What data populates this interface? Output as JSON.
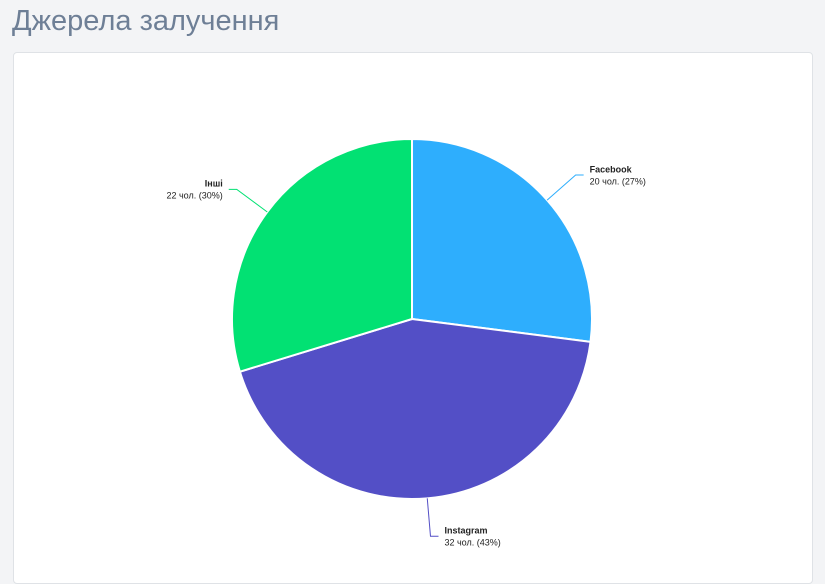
{
  "page_title": "Джерела залучення",
  "chart_data": {
    "type": "pie",
    "categories": [
      "Facebook",
      "Instagram",
      "Інші"
    ],
    "values": [
      20,
      32,
      22
    ],
    "value_labels": [
      "20 чол. (27%)",
      "32 чол. (43%)",
      "22 чол. (30%)"
    ],
    "colors": [
      "#2eaefd",
      "#534fc6",
      "#02e173"
    ]
  }
}
